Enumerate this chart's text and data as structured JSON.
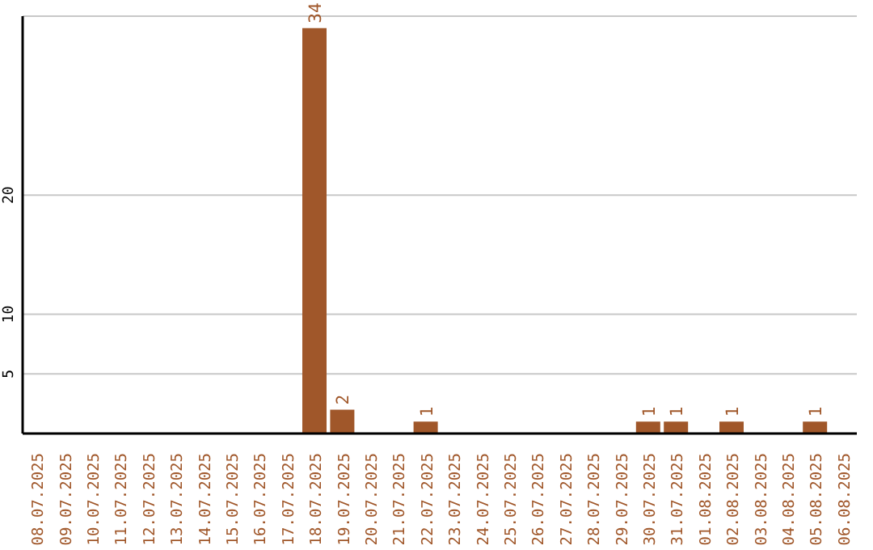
{
  "chart_data": {
    "type": "bar",
    "categories": [
      "08.07.2025",
      "09.07.2025",
      "10.07.2025",
      "11.07.2025",
      "12.07.2025",
      "13.07.2025",
      "14.07.2025",
      "15.07.2025",
      "16.07.2025",
      "17.07.2025",
      "18.07.2025",
      "19.07.2025",
      "20.07.2025",
      "21.07.2025",
      "22.07.2025",
      "23.07.2025",
      "24.07.2025",
      "25.07.2025",
      "26.07.2025",
      "27.07.2025",
      "28.07.2025",
      "29.07.2025",
      "30.07.2025",
      "31.07.2025",
      "01.08.2025",
      "02.08.2025",
      "03.08.2025",
      "04.08.2025",
      "05.08.2025",
      "06.08.2025"
    ],
    "values": [
      0,
      0,
      0,
      0,
      0,
      0,
      0,
      0,
      0,
      0,
      34,
      2,
      0,
      0,
      1,
      0,
      0,
      0,
      0,
      0,
      0,
      0,
      1,
      1,
      0,
      1,
      0,
      0,
      1,
      0
    ],
    "value_labels": [
      null,
      null,
      null,
      null,
      null,
      null,
      null,
      null,
      null,
      null,
      "34",
      "2",
      null,
      null,
      "1",
      null,
      null,
      null,
      null,
      null,
      null,
      null,
      "1",
      "1",
      null,
      "1",
      null,
      null,
      "1",
      null
    ],
    "color": "#a0572a",
    "ylim": [
      0,
      35
    ],
    "yticks": [
      5,
      10,
      20
    ],
    "grid": "y"
  }
}
